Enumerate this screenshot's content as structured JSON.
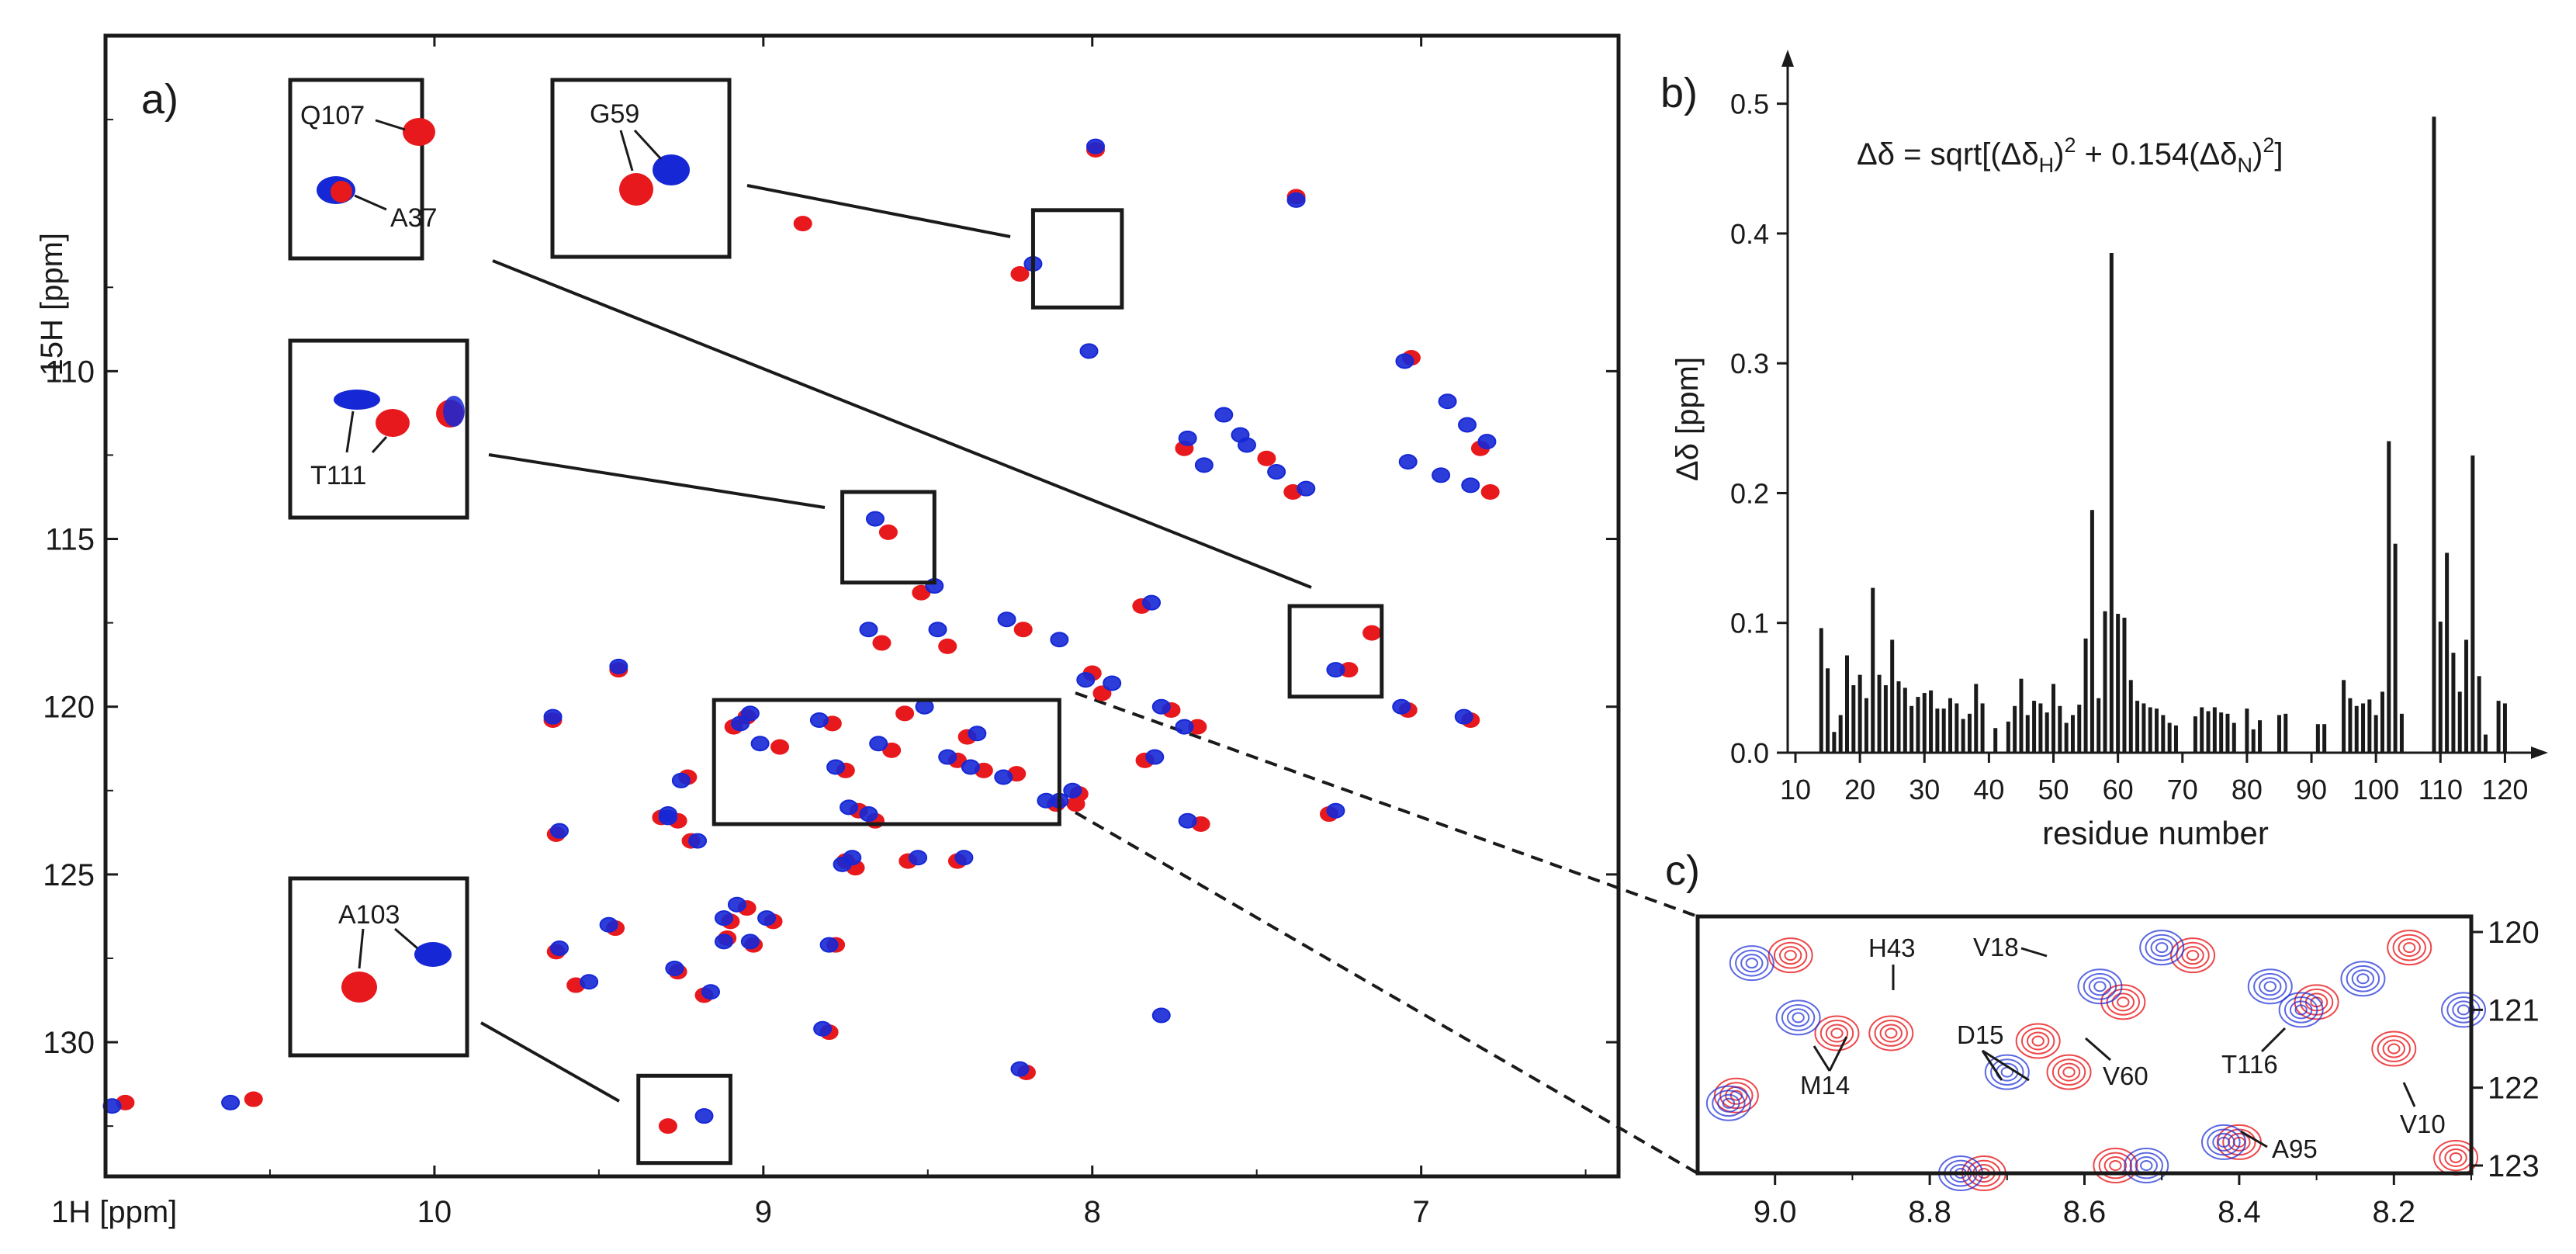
{
  "colors": {
    "red": "#e8191d",
    "blue": "#1628d6",
    "axis": "#1a1a1a",
    "bar": "#1a1a1a"
  },
  "chart_data": [
    {
      "id": "panel_a",
      "type": "scatter",
      "panel_label": "a)",
      "xlabel": "1H [ppm]",
      "ylabel": "15H [ppm]",
      "xlim": [
        11.0,
        6.4
      ],
      "ylim": [
        134.0,
        100.0
      ],
      "xticks": [
        {
          "v": 10,
          "label": "10"
        },
        {
          "v": 9,
          "label": "9"
        },
        {
          "v": 8,
          "label": "8"
        },
        {
          "v": 7,
          "label": "7"
        }
      ],
      "yticks": [
        {
          "v": 110,
          "label": "110"
        },
        {
          "v": 115,
          "label": "115"
        },
        {
          "v": 120,
          "label": "120"
        },
        {
          "v": 125,
          "label": "125"
        },
        {
          "v": 130,
          "label": "130"
        }
      ],
      "series": [
        {
          "name": "red",
          "points": [
            [
              7.99,
              103.4
            ],
            [
              8.22,
              107.1
            ],
            [
              7.38,
              104.8
            ],
            [
              8.88,
              105.6
            ],
            [
              7.03,
              109.6
            ],
            [
              7.72,
              112.3
            ],
            [
              7.47,
              112.6
            ],
            [
              6.82,
              112.3
            ],
            [
              6.79,
              113.6
            ],
            [
              7.39,
              113.6
            ],
            [
              8.62,
              114.8
            ],
            [
              8.52,
              116.6
            ],
            [
              8.21,
              117.7
            ],
            [
              8.44,
              118.2
            ],
            [
              8.64,
              118.1
            ],
            [
              7.15,
              117.8
            ],
            [
              7.22,
              118.9
            ],
            [
              8.0,
              119.0
            ],
            [
              7.97,
              119.6
            ],
            [
              7.76,
              120.1
            ],
            [
              7.68,
              120.6
            ],
            [
              8.79,
              120.5
            ],
            [
              8.57,
              120.2
            ],
            [
              9.23,
              122.1
            ],
            [
              9.44,
              118.9
            ],
            [
              8.95,
              121.2
            ],
            [
              9.05,
              120.3
            ],
            [
              8.38,
              120.9
            ],
            [
              8.23,
              122.0
            ],
            [
              8.33,
              121.9
            ],
            [
              8.61,
              121.3
            ],
            [
              9.64,
              120.4
            ],
            [
              7.04,
              120.1
            ],
            [
              6.85,
              120.4
            ],
            [
              8.75,
              121.9
            ],
            [
              8.05,
              122.9
            ],
            [
              8.71,
              123.1
            ],
            [
              7.67,
              123.5
            ],
            [
              8.66,
              123.4
            ],
            [
              8.56,
              124.6
            ],
            [
              8.72,
              124.8
            ],
            [
              9.63,
              123.8
            ],
            [
              9.26,
              123.4
            ],
            [
              9.22,
              124.0
            ],
            [
              8.11,
              122.9
            ],
            [
              9.05,
              126.0
            ],
            [
              9.1,
              126.4
            ],
            [
              8.97,
              126.4
            ],
            [
              9.03,
              127.1
            ],
            [
              9.11,
              126.9
            ],
            [
              9.57,
              128.3
            ],
            [
              9.45,
              126.6
            ],
            [
              9.26,
              127.9
            ],
            [
              8.78,
              127.1
            ],
            [
              9.18,
              128.6
            ],
            [
              8.8,
              129.7
            ],
            [
              8.2,
              130.9
            ],
            [
              9.29,
              132.5
            ],
            [
              10.55,
              131.7
            ],
            [
              10.94,
              131.8
            ],
            [
              9.63,
              127.3
            ],
            [
              8.75,
              124.6
            ],
            [
              9.31,
              123.3
            ],
            [
              7.28,
              123.2
            ],
            [
              8.41,
              124.6
            ],
            [
              7.84,
              121.6
            ],
            [
              8.04,
              122.6
            ],
            [
              9.09,
              120.6
            ],
            [
              8.41,
              121.6
            ],
            [
              7.85,
              117.0
            ]
          ]
        },
        {
          "name": "blue",
          "points": [
            [
              7.99,
              103.3
            ],
            [
              8.18,
              106.8
            ],
            [
              7.38,
              104.9
            ],
            [
              8.01,
              109.4
            ],
            [
              7.05,
              109.7
            ],
            [
              7.71,
              112.0
            ],
            [
              7.53,
              112.2
            ],
            [
              6.8,
              112.1
            ],
            [
              6.85,
              113.4
            ],
            [
              7.35,
              113.5
            ],
            [
              8.66,
              114.4
            ],
            [
              8.48,
              116.4
            ],
            [
              8.26,
              117.4
            ],
            [
              8.47,
              117.7
            ],
            [
              8.68,
              117.7
            ],
            [
              7.26,
              118.9
            ],
            [
              8.1,
              118.0
            ],
            [
              8.02,
              119.2
            ],
            [
              7.94,
              119.3
            ],
            [
              7.79,
              120.0
            ],
            [
              7.72,
              120.6
            ],
            [
              8.83,
              120.4
            ],
            [
              8.51,
              120.0
            ],
            [
              9.25,
              122.2
            ],
            [
              9.44,
              118.8
            ],
            [
              9.01,
              121.1
            ],
            [
              9.04,
              120.2
            ],
            [
              8.35,
              120.8
            ],
            [
              8.27,
              122.1
            ],
            [
              8.37,
              121.8
            ],
            [
              8.65,
              121.1
            ],
            [
              9.64,
              120.3
            ],
            [
              7.06,
              120.0
            ],
            [
              6.87,
              120.3
            ],
            [
              8.78,
              121.8
            ],
            [
              8.1,
              122.8
            ],
            [
              8.74,
              123.0
            ],
            [
              7.71,
              123.4
            ],
            [
              8.68,
              123.2
            ],
            [
              8.53,
              124.5
            ],
            [
              8.76,
              124.7
            ],
            [
              9.62,
              123.7
            ],
            [
              9.29,
              123.3
            ],
            [
              9.2,
              124.0
            ],
            [
              8.14,
              122.8
            ],
            [
              9.08,
              125.9
            ],
            [
              9.12,
              126.3
            ],
            [
              8.99,
              126.3
            ],
            [
              9.04,
              127.0
            ],
            [
              9.12,
              127.0
            ],
            [
              9.53,
              128.2
            ],
            [
              9.47,
              126.5
            ],
            [
              9.27,
              127.8
            ],
            [
              8.8,
              127.1
            ],
            [
              9.16,
              128.5
            ],
            [
              8.82,
              129.6
            ],
            [
              8.22,
              130.8
            ],
            [
              9.18,
              132.2
            ],
            [
              10.62,
              131.8
            ],
            [
              10.98,
              131.9
            ],
            [
              9.62,
              127.2
            ],
            [
              8.73,
              124.5
            ],
            [
              9.29,
              123.2
            ],
            [
              7.26,
              123.1
            ],
            [
              8.39,
              124.5
            ],
            [
              7.81,
              121.5
            ],
            [
              8.06,
              122.5
            ],
            [
              9.07,
              120.5
            ],
            [
              8.44,
              121.5
            ],
            [
              7.82,
              116.9
            ],
            [
              7.79,
              129.2
            ],
            [
              7.55,
              111.9
            ],
            [
              7.6,
              111.3
            ],
            [
              6.92,
              110.9
            ],
            [
              6.86,
              111.6
            ],
            [
              7.66,
              112.8
            ],
            [
              7.44,
              113.0
            ],
            [
              6.94,
              113.1
            ],
            [
              7.04,
              112.7
            ]
          ]
        }
      ],
      "zoom_boxes": [
        {
          "name": "box-g59",
          "x": [
            8.18,
            7.91
          ],
          "y": [
            105.2,
            108.1
          ]
        },
        {
          "name": "box-t111",
          "x": [
            8.76,
            8.48
          ],
          "y": [
            113.6,
            116.3
          ]
        },
        {
          "name": "box-q107",
          "x": [
            7.4,
            7.12
          ],
          "y": [
            117.0,
            119.7
          ]
        },
        {
          "name": "box-panel-c",
          "x": [
            9.15,
            8.1
          ],
          "y": [
            119.8,
            123.5
          ]
        },
        {
          "name": "box-a103",
          "x": [
            9.38,
            9.1
          ],
          "y": [
            131.0,
            133.6
          ]
        }
      ],
      "insets": [
        {
          "name": "inset-q107",
          "labels": [
            "Q107",
            "A37"
          ]
        },
        {
          "name": "inset-g59",
          "labels": [
            "G59"
          ]
        },
        {
          "name": "inset-t111",
          "labels": [
            "T111"
          ]
        },
        {
          "name": "inset-a103",
          "labels": [
            "A103"
          ]
        }
      ]
    },
    {
      "id": "panel_b",
      "type": "bar",
      "panel_label": "b)",
      "title": "Δδ = sqrt[(ΔδH)² + 0.154(ΔδN)²]",
      "title_parts": {
        "pre": "Δδ = sqrt[(Δδ",
        "sub1": "H",
        "mid1": ")",
        "sup1": "2",
        "mid2": " + 0.154(Δδ",
        "sub2": "N",
        "mid3": ")",
        "sup2": "2",
        "post": "]"
      },
      "xlabel": "residue number",
      "ylabel": "Δδ [ppm]",
      "xlim": [
        10,
        125
      ],
      "ylim": [
        0,
        0.55
      ],
      "xticks": [
        "10",
        "20",
        "30",
        "40",
        "50",
        "60",
        "70",
        "80",
        "90",
        "100",
        "110",
        "120"
      ],
      "yticks": [
        "0.0",
        "0.1",
        "0.2",
        "0.3",
        "0.4",
        "0.5"
      ],
      "residues": [
        14,
        15,
        16,
        17,
        18,
        19,
        20,
        21,
        22,
        23,
        24,
        25,
        26,
        27,
        28,
        29,
        30,
        31,
        32,
        33,
        34,
        35,
        36,
        37,
        38,
        39,
        41,
        43,
        44,
        45,
        46,
        47,
        48,
        49,
        50,
        51,
        52,
        53,
        54,
        55,
        56,
        57,
        58,
        59,
        60,
        61,
        62,
        63,
        64,
        65,
        66,
        67,
        68,
        69,
        72,
        73,
        74,
        75,
        76,
        77,
        78,
        80,
        81,
        82,
        85,
        86,
        91,
        92,
        95,
        96,
        97,
        98,
        99,
        100,
        101,
        102,
        103,
        104,
        109,
        110,
        111,
        112,
        113,
        114,
        115,
        116,
        117,
        119,
        120
      ],
      "values": [
        0.096,
        0.065,
        0.016,
        0.029,
        0.075,
        0.052,
        0.06,
        0.042,
        0.127,
        0.06,
        0.052,
        0.087,
        0.055,
        0.05,
        0.036,
        0.043,
        0.046,
        0.048,
        0.034,
        0.034,
        0.042,
        0.038,
        0.026,
        0.03,
        0.053,
        0.038,
        0.019,
        0.024,
        0.036,
        0.057,
        0.029,
        0.04,
        0.038,
        0.031,
        0.053,
        0.036,
        0.023,
        0.029,
        0.037,
        0.088,
        0.187,
        0.042,
        0.109,
        0.385,
        0.107,
        0.104,
        0.056,
        0.04,
        0.038,
        0.035,
        0.034,
        0.029,
        0.023,
        0.021,
        0.028,
        0.035,
        0.032,
        0.035,
        0.031,
        0.03,
        0.023,
        0.034,
        0.018,
        0.025,
        0.029,
        0.03,
        0.022,
        0.022,
        0.056,
        0.042,
        0.036,
        0.038,
        0.041,
        0.029,
        0.047,
        0.24,
        0.161,
        0.03,
        0.49,
        0.101,
        0.154,
        0.077,
        0.047,
        0.087,
        0.229,
        0.059,
        0.014,
        0.04,
        0.038
      ]
    },
    {
      "id": "panel_c",
      "type": "scatter",
      "panel_label": "c)",
      "xlim": [
        9.1,
        8.1
      ],
      "ylim": [
        123.1,
        119.8
      ],
      "xticks": [
        {
          "v": 9.0,
          "label": "9.0"
        },
        {
          "v": 8.8,
          "label": "8.8"
        },
        {
          "v": 8.6,
          "label": "8.6"
        },
        {
          "v": 8.4,
          "label": "8.4"
        },
        {
          "v": 8.2,
          "label": "8.2"
        }
      ],
      "yticks": [
        {
          "v": 120,
          "label": "120"
        },
        {
          "v": 121,
          "label": "121"
        },
        {
          "v": 122,
          "label": "122"
        },
        {
          "v": 123,
          "label": "123"
        }
      ],
      "series": [
        {
          "name": "red",
          "points": [
            [
              8.98,
              120.3
            ],
            [
              8.92,
              121.3
            ],
            [
              8.85,
              121.3
            ],
            [
              8.66,
              121.4
            ],
            [
              8.55,
              120.9
            ],
            [
              8.62,
              121.8
            ],
            [
              8.46,
              120.3
            ],
            [
              8.3,
              120.9
            ],
            [
              8.2,
              121.5
            ],
            [
              8.18,
              120.2
            ],
            [
              8.73,
              123.1
            ],
            [
              9.05,
              122.1
            ],
            [
              8.4,
              122.7
            ],
            [
              8.12,
              122.9
            ],
            [
              8.56,
              123.0
            ]
          ]
        },
        {
          "name": "blue",
          "points": [
            [
              9.03,
              120.4
            ],
            [
              8.97,
              121.1
            ],
            [
              8.58,
              120.7
            ],
            [
              8.7,
              121.8
            ],
            [
              8.5,
              120.2
            ],
            [
              8.32,
              121.0
            ],
            [
              8.24,
              120.6
            ],
            [
              8.11,
              121.0
            ],
            [
              8.76,
              123.1
            ],
            [
              9.06,
              122.2
            ],
            [
              8.42,
              122.7
            ],
            [
              8.52,
              123.0
            ],
            [
              8.36,
              120.7
            ]
          ]
        }
      ],
      "peak_labels": [
        "H43",
        "V18",
        "M14",
        "D15",
        "V60",
        "T116",
        "V10",
        "A95"
      ]
    }
  ]
}
